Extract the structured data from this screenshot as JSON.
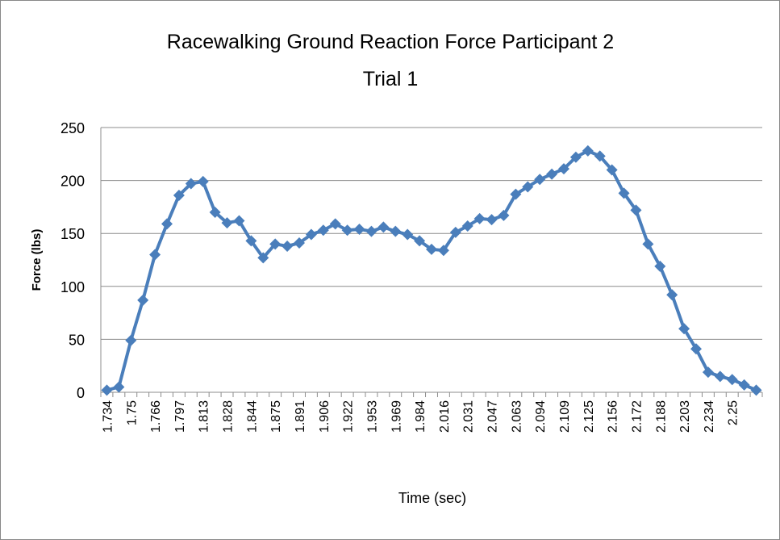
{
  "chart_data": {
    "type": "line",
    "title": [
      "Racewalking Ground Reaction Force Participant  2",
      "Trial 1"
    ],
    "x_label": "Time (sec)",
    "y_label": "Force (lbs)",
    "categories": [
      "1.734",
      null,
      "1.75",
      null,
      "1.766",
      null,
      "1.797",
      null,
      "1.813",
      null,
      "1.828",
      null,
      "1.844",
      null,
      "1.875",
      null,
      "1.891",
      null,
      "1.906",
      null,
      "1.922",
      null,
      "1.953",
      null,
      "1.969",
      null,
      "1.984",
      null,
      "2.016",
      null,
      "2.031",
      null,
      "2.047",
      null,
      "2.063",
      null,
      "2.094",
      null,
      "2.109",
      null,
      "2.125",
      null,
      "2.156",
      null,
      "2.172",
      null,
      "2.188",
      null,
      "2.203",
      null,
      "2.234",
      null,
      "2.25",
      null,
      null
    ],
    "series": [
      {
        "color": "#4a7ebb",
        "values": [
          2,
          5,
          49,
          87,
          130,
          159,
          186,
          197,
          199,
          170,
          160,
          162,
          143,
          127,
          140,
          138,
          141,
          149,
          153,
          159,
          153,
          154,
          152,
          156,
          152,
          149,
          143,
          135,
          134,
          151,
          157,
          164,
          163,
          167,
          187,
          194,
          201,
          206,
          211,
          222,
          228,
          223,
          210,
          188,
          172,
          140,
          119,
          92,
          60,
          41,
          19,
          15,
          12,
          7,
          2
        ]
      }
    ],
    "ylim": [
      0,
      250
    ],
    "yticks": [
      0,
      50,
      100,
      150,
      200,
      250
    ],
    "grid": true
  }
}
